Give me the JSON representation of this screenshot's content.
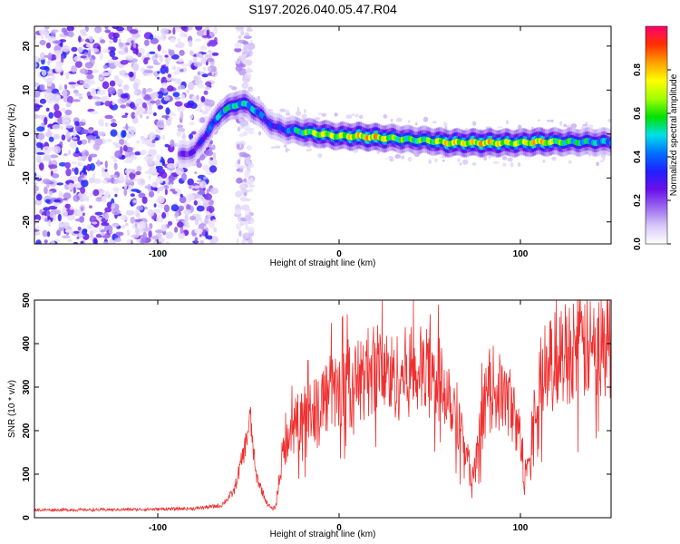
{
  "title": "S197.2026.040.05.47.R04",
  "chart_data": [
    {
      "type": "heatmap",
      "name": "spectrogram",
      "xlabel": "Height of straight line (km)",
      "ylabel": "Frequency (Hz)",
      "xlim": [
        -168,
        150
      ],
      "ylim": [
        -25,
        24.5
      ],
      "xticks": [
        "-100",
        "0",
        "100"
      ],
      "xtick_values": [
        -100,
        0,
        100
      ],
      "yticks": [
        "-20",
        "-10",
        "0",
        "10",
        "20"
      ],
      "ytick_values": [
        -20,
        -10,
        0,
        10,
        20
      ],
      "ridge": {
        "x": [
          -90,
          -80,
          -75,
          -70,
          -65,
          -60,
          -55,
          -50,
          -45,
          -40,
          -35,
          -30,
          -20,
          -10,
          0,
          10,
          20,
          30,
          40,
          50,
          60,
          70,
          80,
          90,
          100,
          110,
          120,
          130,
          140,
          150
        ],
        "y": [
          -5,
          -4,
          -1,
          2,
          5,
          6,
          7,
          6.5,
          5,
          3,
          1.5,
          1,
          0.5,
          0,
          -0.5,
          -0.5,
          -0.8,
          -1,
          -1.3,
          -1.5,
          -2,
          -2,
          -2,
          -2,
          -2,
          -1.8,
          -1.8,
          -1.8,
          -1.8,
          -1.8
        ],
        "amplitude": [
          0.25,
          0.3,
          0.35,
          0.45,
          0.55,
          0.6,
          0.55,
          0.55,
          0.5,
          0.4,
          0.35,
          0.4,
          0.65,
          0.8,
          0.75,
          0.85,
          0.9,
          0.7,
          0.65,
          0.7,
          0.85,
          0.8,
          0.9,
          0.8,
          0.75,
          0.9,
          0.7,
          0.6,
          0.55,
          0.5
        ]
      },
      "colorbar": {
        "label": "Normalized spectral amplitude",
        "range": [
          0,
          1
        ],
        "ticks": [
          "0.0",
          "0.2",
          "0.4",
          "0.6",
          "0.8"
        ],
        "tick_values": [
          0,
          0.2,
          0.4,
          0.6,
          0.8
        ],
        "colors": [
          "#ffffff",
          "#d8c8f8",
          "#9a6af0",
          "#6a0fe8",
          "#2020ff",
          "#0070ff",
          "#00e0e8",
          "#00e000",
          "#a0ff00",
          "#ffff00",
          "#ffa000",
          "#ff3000",
          "#ff0070"
        ]
      }
    },
    {
      "type": "line",
      "name": "snr",
      "xlabel": "Height of straight line (km)",
      "ylabel": "SNR (10 * v/v)",
      "xlim": [
        -168,
        150
      ],
      "ylim": [
        0,
        500
      ],
      "xticks": [
        "-100",
        "0",
        "100"
      ],
      "xtick_values": [
        -100,
        0,
        100
      ],
      "yticks": [
        "0",
        "100",
        "200",
        "300",
        "400",
        "500"
      ],
      "ytick_values": [
        0,
        100,
        200,
        300,
        400,
        500
      ],
      "color": "#f03030",
      "envelope": {
        "x": [
          -168,
          -140,
          -110,
          -80,
          -65,
          -58,
          -52,
          -49,
          -46,
          -40,
          -37,
          -35,
          -32,
          -30,
          -25,
          -20,
          -15,
          -10,
          -5,
          0,
          10,
          20,
          30,
          40,
          50,
          60,
          65,
          70,
          73,
          75,
          80,
          85,
          95,
          100,
          102,
          104,
          110,
          115,
          120,
          130,
          140,
          150
        ],
        "y": [
          18,
          18,
          19,
          21,
          28,
          60,
          160,
          230,
          100,
          35,
          20,
          25,
          120,
          170,
          210,
          230,
          250,
          270,
          285,
          290,
          310,
          350,
          320,
          340,
          330,
          300,
          240,
          160,
          80,
          110,
          260,
          300,
          260,
          180,
          90,
          150,
          290,
          340,
          370,
          390,
          385,
          395
        ]
      }
    }
  ]
}
